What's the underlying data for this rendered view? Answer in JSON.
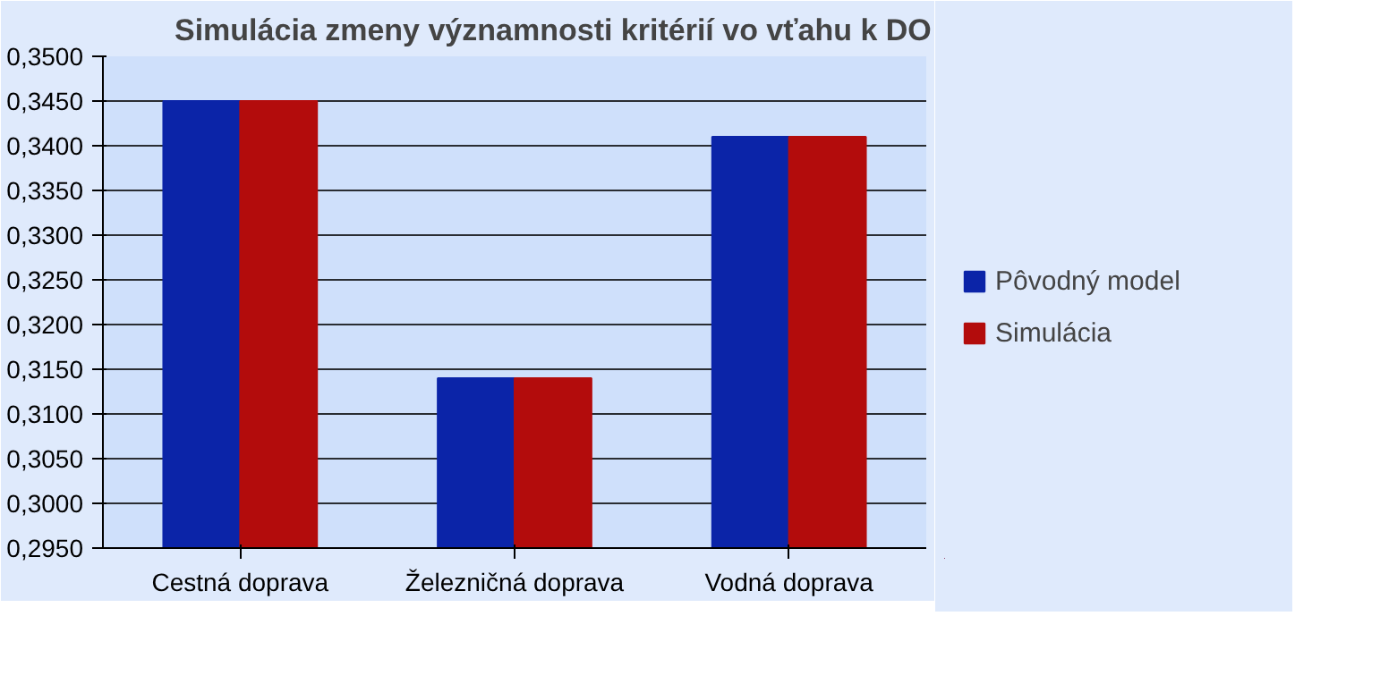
{
  "chart_data": {
    "type": "bar",
    "title": "Simulácia zmeny  významnosti kritérií vo vťahu k DO",
    "categories": [
      "Cestná doprava",
      "Železničná doprava",
      "Vodná doprava"
    ],
    "series": [
      {
        "name": "Pôvodný model",
        "color": "#0b24a8",
        "values": [
          0.345,
          0.314,
          0.341
        ]
      },
      {
        "name": "Simulácia",
        "color": "#b30c0c",
        "values": [
          0.345,
          0.314,
          0.341
        ]
      }
    ],
    "ylim": [
      0.295,
      0.35
    ],
    "yticks": [
      {
        "value": 0.295,
        "label": "0,2950"
      },
      {
        "value": 0.3,
        "label": "0,3000"
      },
      {
        "value": 0.305,
        "label": "0,3050"
      },
      {
        "value": 0.31,
        "label": "0,3100"
      },
      {
        "value": 0.315,
        "label": "0,3150"
      },
      {
        "value": 0.32,
        "label": "0,3200"
      },
      {
        "value": 0.325,
        "label": "0,3250"
      },
      {
        "value": 0.33,
        "label": "0,3300"
      },
      {
        "value": 0.335,
        "label": "0,3350"
      },
      {
        "value": 0.34,
        "label": "0,3400"
      },
      {
        "value": 0.345,
        "label": "0,3450"
      },
      {
        "value": 0.35,
        "label": "0,3500"
      }
    ],
    "grid": "y",
    "legend": "right"
  }
}
